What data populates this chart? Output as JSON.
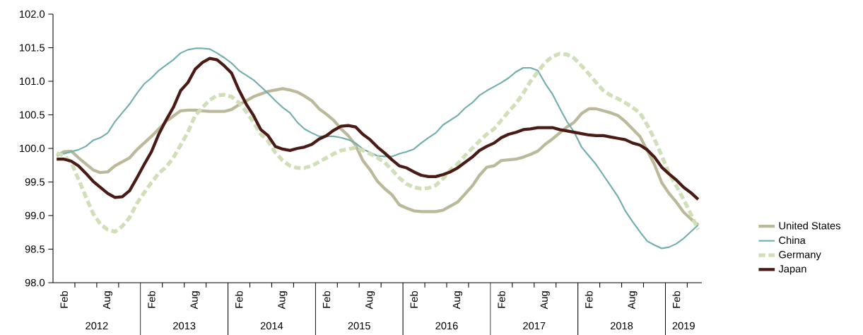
{
  "chart_data": {
    "type": "line",
    "x": [
      "2012-01",
      "2012-02",
      "2012-03",
      "2012-04",
      "2012-05",
      "2012-06",
      "2012-07",
      "2012-08",
      "2012-09",
      "2012-10",
      "2012-11",
      "2012-12",
      "2013-01",
      "2013-02",
      "2013-03",
      "2013-04",
      "2013-05",
      "2013-06",
      "2013-07",
      "2013-08",
      "2013-09",
      "2013-10",
      "2013-11",
      "2013-12",
      "2014-01",
      "2014-02",
      "2014-03",
      "2014-04",
      "2014-05",
      "2014-06",
      "2014-07",
      "2014-08",
      "2014-09",
      "2014-10",
      "2014-11",
      "2014-12",
      "2015-01",
      "2015-02",
      "2015-03",
      "2015-04",
      "2015-05",
      "2015-06",
      "2015-07",
      "2015-08",
      "2015-09",
      "2015-10",
      "2015-11",
      "2015-12",
      "2016-01",
      "2016-02",
      "2016-03",
      "2016-04",
      "2016-05",
      "2016-06",
      "2016-07",
      "2016-08",
      "2016-09",
      "2016-10",
      "2016-11",
      "2016-12",
      "2017-01",
      "2017-02",
      "2017-03",
      "2017-04",
      "2017-05",
      "2017-06",
      "2017-07",
      "2017-08",
      "2017-09",
      "2017-10",
      "2017-11",
      "2017-12",
      "2018-01",
      "2018-02",
      "2018-03",
      "2018-04",
      "2018-05",
      "2018-06",
      "2018-07",
      "2018-08",
      "2018-09",
      "2018-10",
      "2018-11",
      "2018-12",
      "2019-01",
      "2019-02",
      "2019-03",
      "2019-04",
      "2019-05"
    ],
    "series": [
      {
        "name": "United States",
        "color": "#bcb99a",
        "line_style": "solid",
        "values": [
          99.89,
          99.95,
          99.96,
          99.86,
          99.77,
          99.68,
          99.64,
          99.65,
          99.74,
          99.8,
          99.86,
          99.98,
          100.08,
          100.18,
          100.29,
          100.4,
          100.48,
          100.56,
          100.57,
          100.57,
          100.56,
          100.55,
          100.55,
          100.55,
          100.58,
          100.65,
          100.71,
          100.77,
          100.81,
          100.85,
          100.87,
          100.89,
          100.87,
          100.84,
          100.78,
          100.71,
          100.59,
          100.51,
          100.42,
          100.29,
          100.19,
          100.05,
          99.82,
          99.68,
          99.51,
          99.4,
          99.31,
          99.16,
          99.11,
          99.07,
          99.06,
          99.06,
          99.06,
          99.08,
          99.14,
          99.2,
          99.32,
          99.44,
          99.6,
          99.72,
          99.74,
          99.82,
          99.83,
          99.84,
          99.87,
          99.91,
          99.96,
          100.06,
          100.14,
          100.23,
          100.32,
          100.39,
          100.52,
          100.59,
          100.59,
          100.56,
          100.53,
          100.49,
          100.4,
          100.29,
          100.18,
          99.97,
          99.76,
          99.49,
          99.33,
          99.2,
          99.05,
          98.95,
          98.86
        ]
      },
      {
        "name": "China",
        "color": "#72aeae",
        "line_style": "solid",
        "values": [
          99.92,
          99.92,
          99.95,
          99.98,
          100.03,
          100.12,
          100.16,
          100.23,
          100.4,
          100.53,
          100.66,
          100.82,
          100.96,
          101.05,
          101.16,
          101.24,
          101.32,
          101.42,
          101.47,
          101.49,
          101.49,
          101.48,
          101.42,
          101.35,
          101.27,
          101.16,
          101.09,
          101.02,
          100.92,
          100.82,
          100.71,
          100.61,
          100.53,
          100.39,
          100.29,
          100.23,
          100.18,
          100.18,
          100.18,
          100.16,
          100.13,
          100.08,
          99.99,
          99.94,
          99.89,
          99.88,
          99.88,
          99.92,
          99.95,
          99.99,
          100.08,
          100.16,
          100.23,
          100.35,
          100.42,
          100.49,
          100.6,
          100.68,
          100.79,
          100.86,
          100.92,
          100.98,
          101.05,
          101.14,
          101.2,
          101.2,
          101.16,
          100.97,
          100.81,
          100.6,
          100.4,
          100.24,
          100.02,
          99.89,
          99.76,
          99.6,
          99.44,
          99.28,
          99.07,
          98.91,
          98.76,
          98.62,
          98.56,
          98.51,
          98.53,
          98.58,
          98.66,
          98.76,
          98.86
        ]
      },
      {
        "name": "Germany",
        "color": "#d0dfb8",
        "line_style": "dashed",
        "values": [
          99.93,
          99.89,
          99.79,
          99.54,
          99.28,
          99.03,
          98.87,
          98.79,
          98.76,
          98.84,
          98.97,
          99.18,
          99.34,
          99.49,
          99.63,
          99.72,
          99.86,
          100.05,
          100.24,
          100.49,
          100.61,
          100.72,
          100.79,
          100.8,
          100.77,
          100.68,
          100.55,
          100.39,
          100.21,
          100.11,
          99.94,
          99.82,
          99.74,
          99.71,
          99.71,
          99.74,
          99.8,
          99.86,
          99.92,
          99.97,
          99.99,
          100.01,
          99.97,
          99.92,
          99.86,
          99.79,
          99.68,
          99.56,
          99.47,
          99.42,
          99.4,
          99.41,
          99.45,
          99.55,
          99.68,
          99.77,
          99.89,
          100.0,
          100.11,
          100.21,
          100.29,
          100.42,
          100.55,
          100.67,
          100.82,
          101.0,
          101.14,
          101.28,
          101.37,
          101.41,
          101.4,
          101.34,
          101.23,
          101.11,
          100.98,
          100.86,
          100.79,
          100.74,
          100.68,
          100.61,
          100.53,
          100.35,
          100.14,
          99.89,
          99.63,
          99.44,
          99.24,
          99.02,
          98.79
        ]
      },
      {
        "name": "Japan",
        "color": "#4a1a14",
        "line_style": "solid",
        "values": [
          99.84,
          99.84,
          99.81,
          99.74,
          99.63,
          99.51,
          99.42,
          99.33,
          99.27,
          99.28,
          99.37,
          99.56,
          99.76,
          99.95,
          100.21,
          100.42,
          100.61,
          100.86,
          100.98,
          101.18,
          101.28,
          101.34,
          101.32,
          101.23,
          101.12,
          100.87,
          100.66,
          100.49,
          100.28,
          100.19,
          100.03,
          99.99,
          99.97,
          100.0,
          100.02,
          100.06,
          100.14,
          100.19,
          100.27,
          100.33,
          100.34,
          100.32,
          100.21,
          100.13,
          100.02,
          99.93,
          99.83,
          99.74,
          99.71,
          99.65,
          99.6,
          99.58,
          99.58,
          99.61,
          99.65,
          99.71,
          99.79,
          99.87,
          99.97,
          100.03,
          100.08,
          100.16,
          100.21,
          100.24,
          100.28,
          100.29,
          100.31,
          100.31,
          100.31,
          100.28,
          100.26,
          100.24,
          100.22,
          100.2,
          100.19,
          100.19,
          100.17,
          100.15,
          100.13,
          100.08,
          100.05,
          99.98,
          99.87,
          99.72,
          99.62,
          99.53,
          99.42,
          99.34,
          99.24
        ]
      }
    ],
    "xlim": [
      "2012-01-01",
      "2019-06-01"
    ],
    "xticks": [
      {
        "value": "2012-02",
        "label": "Feb"
      },
      {
        "value": "2012-08",
        "label": "Aug"
      },
      {
        "value": "2013-02",
        "label": "Feb"
      },
      {
        "value": "2013-08",
        "label": "Aug"
      },
      {
        "value": "2014-02",
        "label": "Feb"
      },
      {
        "value": "2014-08",
        "label": "Aug"
      },
      {
        "value": "2015-02",
        "label": "Feb"
      },
      {
        "value": "2015-08",
        "label": "Aug"
      },
      {
        "value": "2016-02",
        "label": "Feb"
      },
      {
        "value": "2016-08",
        "label": "Aug"
      },
      {
        "value": "2017-02",
        "label": "Feb"
      },
      {
        "value": "2017-08",
        "label": "Aug"
      },
      {
        "value": "2018-02",
        "label": "Feb"
      },
      {
        "value": "2018-08",
        "label": "Aug"
      },
      {
        "value": "2019-02",
        "label": "Feb"
      }
    ],
    "annotations": [
      "2012",
      "2013",
      "2014",
      "2015",
      "2016",
      "2017",
      "2018",
      "2019"
    ],
    "ylim": [
      98.0,
      102.0
    ],
    "yticks": [
      {
        "value": 98.0,
        "label": "98.0"
      },
      {
        "value": 98.5,
        "label": "98.5"
      },
      {
        "value": 99.0,
        "label": "99.0"
      },
      {
        "value": 99.5,
        "label": "99.5"
      },
      {
        "value": 100.0,
        "label": "100.0"
      },
      {
        "value": 100.5,
        "label": "100.5"
      },
      {
        "value": 101.0,
        "label": "101.0"
      },
      {
        "value": 101.5,
        "label": "101.5"
      },
      {
        "value": 102.0,
        "label": "102.0"
      }
    ],
    "legend": "right"
  }
}
